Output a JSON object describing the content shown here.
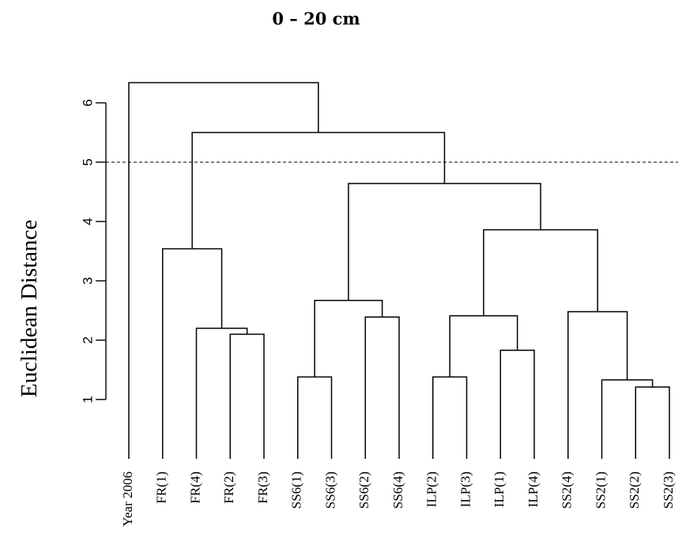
{
  "chart_data": {
    "type": "dendrogram",
    "title": "0 – 20 cm",
    "ylabel": "Euclidean Distance",
    "xlabel": "",
    "ylim": [
      0,
      6.5
    ],
    "yticks": [
      1,
      2,
      3,
      4,
      5,
      6
    ],
    "cut_height": 5,
    "leaves": [
      "Year 2006",
      "FR(1)",
      "FR(4)",
      "FR(2)",
      "FR(3)",
      "SS6(1)",
      "SS6(3)",
      "SS6(2)",
      "SS6(4)",
      "ILP(2)",
      "ILP(3)",
      "ILP(1)",
      "ILP(4)",
      "SS2(4)",
      "SS2(1)",
      "SS2(2)",
      "SS2(3)"
    ],
    "merges": [
      {
        "id": "m1",
        "left": "SS2(2)",
        "right": "SS2(3)",
        "height": 1.21
      },
      {
        "id": "m2",
        "left": "SS2(1)",
        "right": "m1",
        "height": 1.33
      },
      {
        "id": "m3",
        "left": "SS6(1)",
        "right": "SS6(3)",
        "height": 1.38
      },
      {
        "id": "m4",
        "left": "ILP(2)",
        "right": "ILP(3)",
        "height": 1.38
      },
      {
        "id": "m5",
        "left": "ILP(1)",
        "right": "ILP(4)",
        "height": 1.83
      },
      {
        "id": "m6",
        "left": "FR(2)",
        "right": "FR(3)",
        "height": 2.1
      },
      {
        "id": "m7",
        "left": "FR(4)",
        "right": "m6",
        "height": 2.2
      },
      {
        "id": "m8",
        "left": "SS6(2)",
        "right": "SS6(4)",
        "height": 2.39
      },
      {
        "id": "m9",
        "left": "m4",
        "right": "m5",
        "height": 2.41
      },
      {
        "id": "m10",
        "left": "SS2(4)",
        "right": "m2",
        "height": 2.48
      },
      {
        "id": "m11",
        "left": "m3",
        "right": "m8",
        "height": 2.67
      },
      {
        "id": "m12",
        "left": "FR(1)",
        "right": "m7",
        "height": 3.54
      },
      {
        "id": "m13",
        "left": "m9",
        "right": "m10",
        "height": 3.86
      },
      {
        "id": "m14",
        "left": "m11",
        "right": "m13",
        "height": 4.64
      },
      {
        "id": "m15",
        "left": "m12",
        "right": "m14",
        "height": 5.5
      },
      {
        "id": "m16",
        "left": "Year 2006",
        "right": "m15",
        "height": 6.34
      }
    ]
  }
}
